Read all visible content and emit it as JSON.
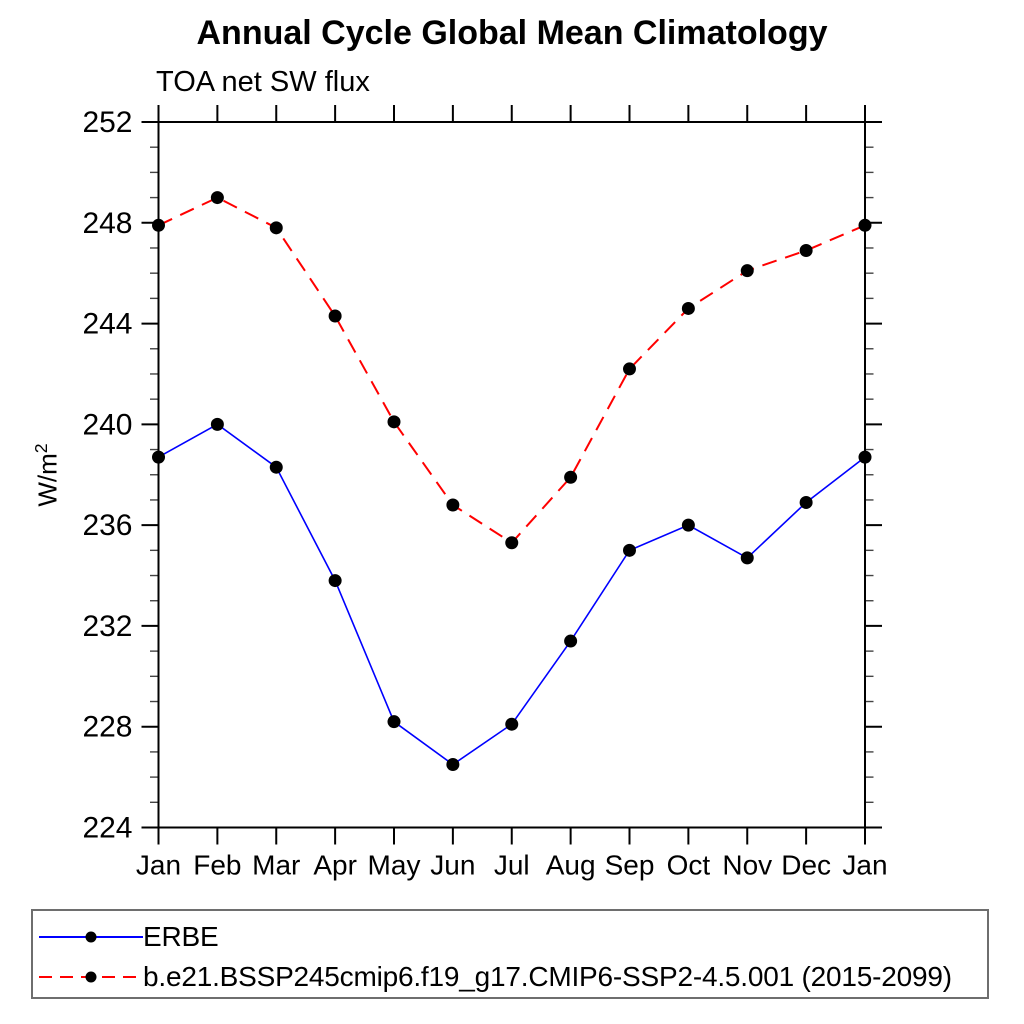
{
  "figure": {
    "title": "Annual Cycle Global Mean Climatology",
    "subtitle": "TOA net SW flux",
    "ylabel_base": "W/m",
    "ylabel_exp": "2"
  },
  "chart_data": {
    "type": "line",
    "title": "Annual Cycle Global Mean Climatology",
    "subtitle": "TOA net SW flux",
    "xlabel": "",
    "ylabel": "W/m^2",
    "categories": [
      "Jan",
      "Feb",
      "Mar",
      "Apr",
      "May",
      "Jun",
      "Jul",
      "Aug",
      "Sep",
      "Oct",
      "Nov",
      "Dec",
      "Jan"
    ],
    "ylim": [
      224,
      252
    ],
    "yticks": [
      224,
      228,
      232,
      236,
      240,
      244,
      248,
      252
    ],
    "ytick_minor_interval": 1,
    "grid": false,
    "legend_position": "bottom",
    "axis_color": "#000000",
    "marker_color": "#000000",
    "series": [
      {
        "name": "ERBE",
        "color": "#0000ff",
        "line_style": "solid",
        "marker": "circle",
        "values": [
          238.7,
          240.0,
          238.3,
          233.8,
          228.2,
          226.5,
          228.1,
          231.4,
          235.0,
          236.0,
          234.7,
          236.9,
          238.7
        ]
      },
      {
        "name": "b.e21.BSSP245cmip6.f19_g17.CMIP6-SSP2-4.5.001 (2015-2099)",
        "color": "#ff0000",
        "line_style": "dashed",
        "marker": "circle",
        "values": [
          247.9,
          249.0,
          247.8,
          244.3,
          240.1,
          236.8,
          235.3,
          237.9,
          242.2,
          244.6,
          246.1,
          246.9,
          247.9
        ]
      }
    ]
  }
}
